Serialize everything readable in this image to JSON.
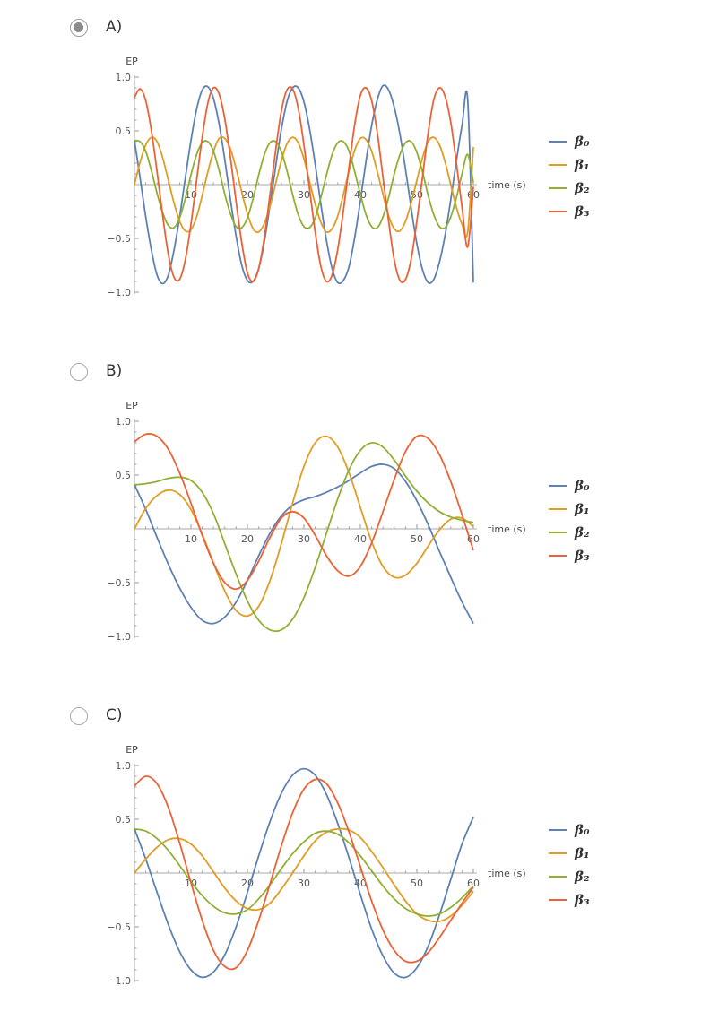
{
  "options": [
    {
      "label": "A)",
      "selected": true
    },
    {
      "label": "B)",
      "selected": false
    },
    {
      "label": "C)",
      "selected": false
    }
  ],
  "colors": {
    "beta0": "#5e81b5",
    "beta1": "#e19c24",
    "beta2": "#8fb032",
    "beta3": "#eb6235"
  },
  "chart_data": [
    {
      "type": "line",
      "option": "A)",
      "ylabel": "EP",
      "xlabel": "time (s)",
      "xlim": [
        0,
        60
      ],
      "ylim": [
        -1,
        1
      ],
      "xticks": [
        10,
        20,
        30,
        40,
        50,
        60
      ],
      "yticks": [
        1.0,
        0.5,
        -0.5,
        -1.0
      ],
      "ytick_labels": [
        "1.0",
        "0.5",
        "−0.5",
        "−1.0"
      ],
      "x": [
        0,
        1,
        2,
        3,
        4,
        5,
        6,
        7,
        8,
        9,
        10,
        11,
        12,
        13,
        14,
        15,
        16,
        17,
        18,
        19,
        20,
        21,
        22,
        23,
        24,
        25,
        26,
        27,
        28,
        29,
        30,
        31,
        32,
        33,
        34,
        35,
        36,
        37,
        38,
        39,
        40,
        41,
        42,
        43,
        44,
        45,
        46,
        47,
        48,
        49,
        50,
        51,
        52,
        53,
        54,
        55,
        56,
        57,
        58,
        59,
        60
      ],
      "series": [
        {
          "name": "β₀",
          "color": "#5e81b5",
          "values": [
            0.41,
            0.06,
            -0.3,
            -0.61,
            -0.84,
            -0.92,
            -0.84,
            -0.61,
            -0.3,
            0.06,
            0.41,
            0.7,
            0.88,
            0.91,
            0.8,
            0.56,
            0.23,
            -0.14,
            -0.48,
            -0.75,
            -0.89,
            -0.9,
            -0.78,
            -0.53,
            -0.19,
            0.17,
            0.51,
            0.77,
            0.9,
            0.9,
            0.77,
            0.52,
            0.19,
            -0.18,
            -0.52,
            -0.78,
            -0.91,
            -0.89,
            -0.76,
            -0.49,
            -0.15,
            0.22,
            0.55,
            0.79,
            0.92,
            0.88,
            0.72,
            0.47,
            0.14,
            -0.22,
            -0.55,
            -0.79,
            -0.91,
            -0.88,
            -0.72,
            -0.47,
            -0.14,
            0.22,
            0.55,
            0.79,
            -0.91
          ]
        },
        {
          "name": "β₁",
          "color": "#e19c24",
          "values": [
            0.0,
            0.21,
            0.37,
            0.44,
            0.4,
            0.25,
            0.04,
            -0.17,
            -0.34,
            -0.43,
            -0.42,
            -0.3,
            -0.1,
            0.12,
            0.31,
            0.43,
            0.43,
            0.33,
            0.15,
            -0.07,
            -0.27,
            -0.41,
            -0.44,
            -0.36,
            -0.2,
            0.01,
            0.22,
            0.38,
            0.44,
            0.39,
            0.24,
            0.03,
            -0.18,
            -0.35,
            -0.44,
            -0.41,
            -0.29,
            -0.09,
            0.13,
            0.32,
            0.43,
            0.42,
            0.31,
            0.12,
            -0.09,
            -0.29,
            -0.41,
            -0.43,
            -0.34,
            -0.17,
            0.04,
            0.25,
            0.4,
            0.44,
            0.37,
            0.21,
            0.0,
            -0.21,
            -0.37,
            -0.44,
            0.35
          ]
        },
        {
          "name": "β₂",
          "color": "#8fb032",
          "values": [
            0.41,
            0.4,
            0.31,
            0.13,
            -0.08,
            -0.26,
            -0.38,
            -0.4,
            -0.31,
            -0.13,
            0.09,
            0.28,
            0.39,
            0.4,
            0.31,
            0.13,
            -0.09,
            -0.27,
            -0.39,
            -0.4,
            -0.31,
            -0.13,
            0.09,
            0.28,
            0.39,
            0.4,
            0.31,
            0.13,
            -0.09,
            -0.28,
            -0.39,
            -0.4,
            -0.31,
            -0.12,
            0.09,
            0.28,
            0.39,
            0.4,
            0.31,
            0.12,
            -0.09,
            -0.28,
            -0.39,
            -0.4,
            -0.3,
            -0.12,
            0.1,
            0.28,
            0.39,
            0.4,
            0.3,
            0.12,
            -0.1,
            -0.28,
            -0.39,
            -0.4,
            -0.3,
            -0.12,
            0.1,
            0.28,
            0.02
          ]
        },
        {
          "name": "β₃",
          "color": "#eb6235",
          "values": [
            0.81,
            0.89,
            0.78,
            0.5,
            0.12,
            -0.29,
            -0.65,
            -0.86,
            -0.88,
            -0.7,
            -0.37,
            0.04,
            0.44,
            0.76,
            0.9,
            0.84,
            0.61,
            0.25,
            -0.16,
            -0.54,
            -0.82,
            -0.9,
            -0.78,
            -0.49,
            -0.09,
            0.32,
            0.68,
            0.88,
            0.89,
            0.71,
            0.37,
            -0.04,
            -0.44,
            -0.76,
            -0.9,
            -0.84,
            -0.6,
            -0.24,
            0.17,
            0.56,
            0.83,
            0.9,
            0.78,
            0.48,
            0.07,
            -0.34,
            -0.7,
            -0.89,
            -0.88,
            -0.69,
            -0.34,
            0.07,
            0.48,
            0.79,
            0.9,
            0.82,
            0.58,
            0.2,
            -0.21,
            -0.58,
            -0.02
          ]
        }
      ]
    },
    {
      "type": "line",
      "option": "B)",
      "ylabel": "EP",
      "xlabel": "time (s)",
      "xlim": [
        0,
        60
      ],
      "ylim": [
        -1,
        1
      ],
      "xticks": [
        10,
        20,
        30,
        40,
        50,
        60
      ],
      "yticks": [
        1.0,
        0.5,
        -0.5,
        -1.0
      ],
      "ytick_labels": [
        "1.0",
        "0.5",
        "−0.5",
        "−1.0"
      ],
      "x": [
        0,
        2,
        4,
        6,
        8,
        10,
        12,
        14,
        16,
        18,
        20,
        22,
        24,
        26,
        28,
        30,
        32,
        34,
        36,
        38,
        40,
        42,
        44,
        46,
        48,
        50,
        52,
        54,
        56,
        58,
        60
      ],
      "series": [
        {
          "name": "β₀",
          "color": "#5e81b5",
          "values": [
            0.41,
            0.18,
            -0.08,
            -0.33,
            -0.55,
            -0.73,
            -0.85,
            -0.88,
            -0.82,
            -0.68,
            -0.48,
            -0.25,
            -0.04,
            0.12,
            0.22,
            0.27,
            0.3,
            0.34,
            0.39,
            0.45,
            0.52,
            0.58,
            0.6,
            0.56,
            0.44,
            0.26,
            0.04,
            -0.21,
            -0.45,
            -0.68,
            -0.88
          ]
        },
        {
          "name": "β₁",
          "color": "#e19c24",
          "values": [
            0.0,
            0.19,
            0.31,
            0.36,
            0.32,
            0.18,
            -0.05,
            -0.32,
            -0.58,
            -0.76,
            -0.81,
            -0.72,
            -0.48,
            -0.14,
            0.24,
            0.58,
            0.8,
            0.86,
            0.76,
            0.52,
            0.2,
            -0.12,
            -0.35,
            -0.45,
            -0.43,
            -0.32,
            -0.16,
            -0.01,
            0.09,
            0.1,
            0.02
          ]
        },
        {
          "name": "β₂",
          "color": "#8fb032",
          "values": [
            0.41,
            0.42,
            0.44,
            0.47,
            0.48,
            0.45,
            0.34,
            0.14,
            -0.14,
            -0.42,
            -0.67,
            -0.85,
            -0.94,
            -0.94,
            -0.84,
            -0.64,
            -0.36,
            -0.04,
            0.28,
            0.55,
            0.73,
            0.8,
            0.76,
            0.64,
            0.49,
            0.35,
            0.24,
            0.16,
            0.11,
            0.08,
            0.06
          ]
        },
        {
          "name": "β₃",
          "color": "#eb6235",
          "values": [
            0.81,
            0.88,
            0.86,
            0.74,
            0.52,
            0.24,
            -0.06,
            -0.32,
            -0.5,
            -0.56,
            -0.48,
            -0.3,
            -0.08,
            0.1,
            0.16,
            0.1,
            -0.06,
            -0.25,
            -0.39,
            -0.44,
            -0.35,
            -0.13,
            0.16,
            0.46,
            0.72,
            0.86,
            0.84,
            0.69,
            0.44,
            0.13,
            -0.2
          ]
        }
      ]
    },
    {
      "type": "line",
      "option": "C)",
      "ylabel": "EP",
      "xlabel": "time (s)",
      "xlim": [
        0,
        60
      ],
      "ylim": [
        -1,
        1
      ],
      "xticks": [
        10,
        20,
        30,
        40,
        50,
        60
      ],
      "yticks": [
        1.0,
        0.5,
        -0.5,
        -1.0
      ],
      "ytick_labels": [
        "1.0",
        "0.5",
        "−0.5",
        "−1.0"
      ],
      "x": [
        0,
        2,
        4,
        6,
        8,
        10,
        12,
        14,
        16,
        18,
        20,
        22,
        24,
        26,
        28,
        30,
        32,
        34,
        36,
        38,
        40,
        42,
        44,
        46,
        48,
        50,
        52,
        54,
        56,
        58,
        60
      ],
      "series": [
        {
          "name": "β₀",
          "color": "#5e81b5",
          "values": [
            0.41,
            0.13,
            -0.18,
            -0.48,
            -0.73,
            -0.9,
            -0.97,
            -0.92,
            -0.76,
            -0.5,
            -0.18,
            0.16,
            0.48,
            0.74,
            0.91,
            0.97,
            0.91,
            0.73,
            0.46,
            0.14,
            -0.2,
            -0.52,
            -0.77,
            -0.93,
            -0.97,
            -0.88,
            -0.68,
            -0.39,
            -0.06,
            0.27,
            0.52
          ]
        },
        {
          "name": "β₁",
          "color": "#e19c24",
          "values": [
            0.0,
            0.13,
            0.24,
            0.31,
            0.32,
            0.27,
            0.16,
            0.01,
            -0.14,
            -0.26,
            -0.33,
            -0.34,
            -0.28,
            -0.15,
            0.0,
            0.16,
            0.3,
            0.38,
            0.41,
            0.4,
            0.33,
            0.2,
            0.05,
            -0.11,
            -0.26,
            -0.38,
            -0.44,
            -0.45,
            -0.4,
            -0.3,
            -0.17
          ]
        },
        {
          "name": "β₂",
          "color": "#8fb032",
          "values": [
            0.41,
            0.39,
            0.32,
            0.21,
            0.07,
            -0.08,
            -0.21,
            -0.31,
            -0.37,
            -0.38,
            -0.34,
            -0.24,
            -0.11,
            0.04,
            0.18,
            0.29,
            0.37,
            0.39,
            0.36,
            0.28,
            0.16,
            0.02,
            -0.12,
            -0.24,
            -0.33,
            -0.38,
            -0.4,
            -0.38,
            -0.32,
            -0.23,
            -0.12
          ]
        },
        {
          "name": "β₃",
          "color": "#eb6235",
          "values": [
            0.81,
            0.9,
            0.83,
            0.61,
            0.28,
            -0.09,
            -0.44,
            -0.72,
            -0.87,
            -0.88,
            -0.72,
            -0.44,
            -0.1,
            0.25,
            0.56,
            0.78,
            0.87,
            0.83,
            0.65,
            0.38,
            0.06,
            -0.26,
            -0.53,
            -0.72,
            -0.82,
            -0.82,
            -0.74,
            -0.6,
            -0.44,
            -0.28,
            -0.13
          ]
        }
      ]
    }
  ]
}
